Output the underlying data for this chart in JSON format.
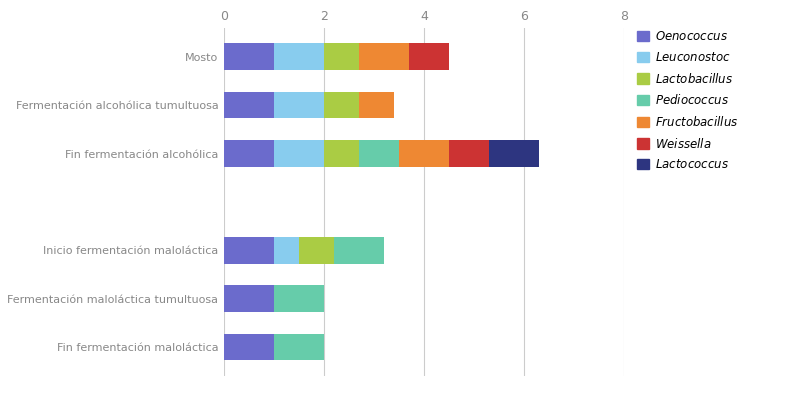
{
  "categories": [
    "Mosto",
    "Fermentación alcohólica tumultuosa",
    "Fin fermentación alcohólica",
    "Inicio fermentación maloláctica",
    "Fermentación maloláctica tumultuosa",
    "Fin fermentación maloláctica"
  ],
  "species": [
    "Oenococcus",
    "Leuconostoc",
    "Lactobacillus",
    "Pediococcus",
    "Fructobacillus",
    "Weissella",
    "Lactococcus"
  ],
  "colors": [
    "#6b6bcc",
    "#88ccee",
    "#aacc44",
    "#66ccaa",
    "#ee8833",
    "#cc3333",
    "#2d3580"
  ],
  "data": [
    [
      1.0,
      1.0,
      0.7,
      0.0,
      1.0,
      0.8,
      0.0
    ],
    [
      1.0,
      1.0,
      0.7,
      0.0,
      0.7,
      0.0,
      0.0
    ],
    [
      1.0,
      1.0,
      0.7,
      0.8,
      1.0,
      0.8,
      1.0
    ],
    [
      1.0,
      0.5,
      0.7,
      1.0,
      0.0,
      0.0,
      0.0
    ],
    [
      1.0,
      0.0,
      0.0,
      1.0,
      0.0,
      0.0,
      0.0
    ],
    [
      1.0,
      0.0,
      0.0,
      1.0,
      0.0,
      0.0,
      0.0
    ]
  ],
  "y_positions": [
    6,
    5,
    4,
    2,
    1,
    0
  ],
  "xlim": [
    0,
    8
  ],
  "xticks": [
    0,
    2,
    4,
    6,
    8
  ],
  "bar_height": 0.55,
  "background_color": "#ffffff",
  "grid_color": "#cccccc",
  "tick_color": "#888888",
  "label_color": "#888888",
  "legend_labels": [
    "Oenococcus",
    "Leuconostoc",
    "Lactobacillus",
    "Pediococcus",
    "Fructobacillus",
    "Weissella",
    "Lactococcus"
  ]
}
